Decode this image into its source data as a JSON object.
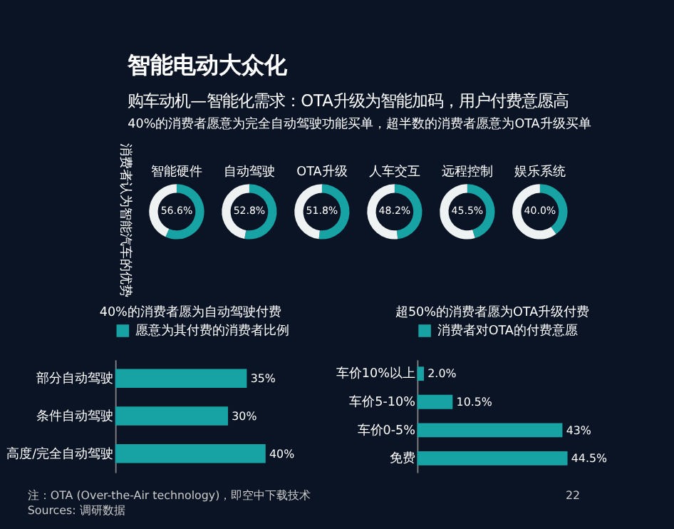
{
  "chart_data": [
    {
      "type": "other",
      "title": "智能电动大众化",
      "subtitle": "购车动机—智能化需求：OTA升级为智能加码，用户付费意愿高",
      "annotations": [
        "40%的消费者愿意为完全自动驾驶功能买单，超半数的消费者愿意为OTA升级买单",
        "消费者认为智能汽车的优势"
      ]
    },
    {
      "type": "donut",
      "title": "智能硬件",
      "categories": [
        null,
        null
      ],
      "values": [
        56.6,
        43.4
      ],
      "value_labels": [
        "56.6%",
        null
      ],
      "colors": [
        "#17a2a4",
        "#eef2f2"
      ]
    },
    {
      "type": "donut",
      "title": "自动驾驶",
      "categories": [
        null,
        null
      ],
      "values": [
        52.8,
        47.2
      ],
      "value_labels": [
        "52.8%",
        null
      ],
      "colors": [
        "#17a2a4",
        "#eef2f2"
      ]
    },
    {
      "type": "donut",
      "title": "OTA升级",
      "categories": [
        null,
        null
      ],
      "values": [
        51.8,
        48.2
      ],
      "value_labels": [
        "51.8%",
        null
      ],
      "colors": [
        "#17a2a4",
        "#eef2f2"
      ]
    },
    {
      "type": "donut",
      "title": "人车交互",
      "categories": [
        null,
        null
      ],
      "values": [
        48.2,
        51.8
      ],
      "value_labels": [
        "48.2%",
        null
      ],
      "colors": [
        "#17a2a4",
        "#eef2f2"
      ]
    },
    {
      "type": "donut",
      "title": "远程控制",
      "categories": [
        null,
        null
      ],
      "values": [
        45.5,
        54.5
      ],
      "value_labels": [
        "45.5%",
        null
      ],
      "colors": [
        "#17a2a4",
        "#eef2f2"
      ]
    },
    {
      "type": "donut",
      "title": "娱乐系统",
      "categories": [
        null,
        null
      ],
      "values": [
        40.0,
        60.0
      ],
      "value_labels": [
        "40.0%",
        null
      ],
      "colors": [
        "#17a2a4",
        "#eef2f2"
      ]
    },
    {
      "type": "bar",
      "orientation": "horizontal",
      "title": "40%的消费者愿为自动驾驶付费",
      "categories": [
        "部分自动驾驶",
        "条件自动驾驶",
        "高度/完全自动驾驶"
      ],
      "legend": "top",
      "series": [
        {
          "name": "愿意为其付费的消费者比例",
          "color": "#17a2a4",
          "values": [
            35,
            30,
            40
          ],
          "value_labels": [
            "35%",
            "30%",
            "40%"
          ]
        }
      ],
      "annotations": [
        "注：OTA (Over-the-Air technology)，即空中下载技术",
        "Sources: 调研数据"
      ]
    },
    {
      "type": "bar",
      "orientation": "horizontal",
      "title": "超50%的消费者愿为OTA升级付费",
      "categories": [
        "车价10%以上",
        "车价5-10%",
        "车价0-5%",
        "免费"
      ],
      "legend": "top",
      "series": [
        {
          "name": "消费者对OTA的付费意愿",
          "color": "#17a2a4",
          "values": [
            2.0,
            10.5,
            43,
            44.5
          ],
          "value_labels": [
            "2.0%",
            "10.5%",
            "43%",
            "44.5%"
          ]
        }
      ],
      "annotations": [
        "22"
      ]
    }
  ]
}
